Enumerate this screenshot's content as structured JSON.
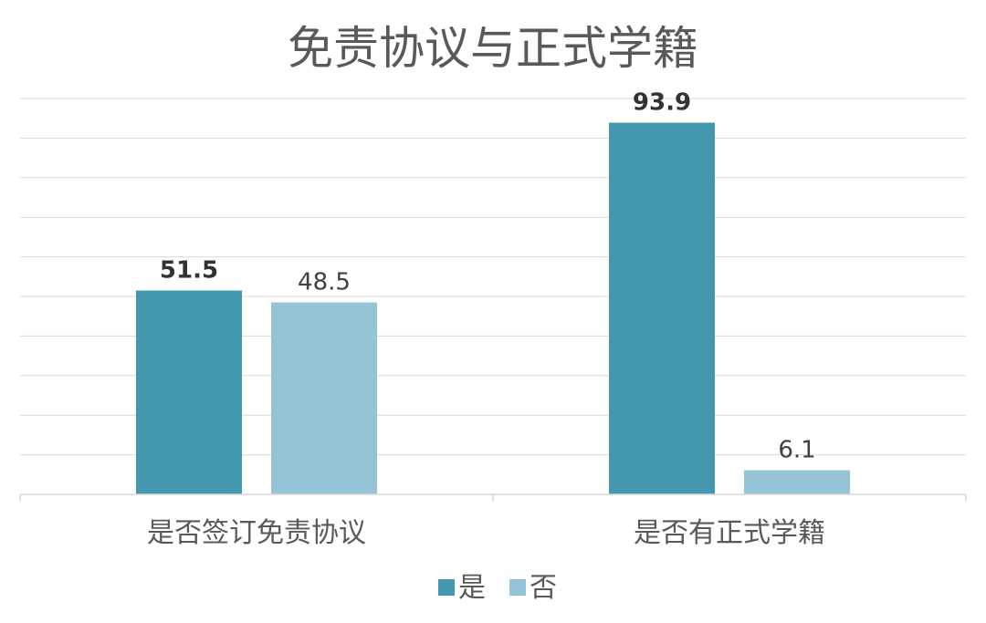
{
  "chart_data": {
    "type": "bar",
    "title": "免责协议与正式学籍",
    "categories": [
      "是否签订免责协议",
      "是否有正式学籍"
    ],
    "series": [
      {
        "name": "是",
        "values": [
          51.5,
          93.9
        ],
        "color": "#4398b0"
      },
      {
        "name": "否",
        "values": [
          48.5,
          6.1
        ],
        "color": "#95c4d6"
      }
    ],
    "data_labels": [
      [
        "51.5",
        "93.9"
      ],
      [
        "48.5",
        "6.1"
      ]
    ],
    "ylim": [
      0,
      100
    ],
    "grid": true,
    "legend": "bottom",
    "xlabel": "",
    "ylabel": ""
  }
}
